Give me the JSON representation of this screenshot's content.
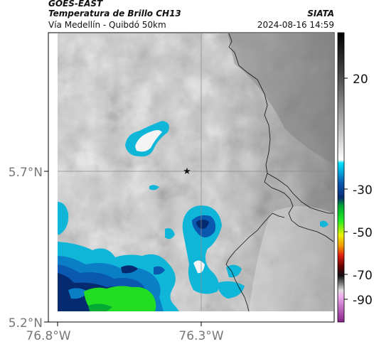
{
  "header": {
    "satellite": "GOES-EAST",
    "product": "Temperatura de Brillo CH13",
    "region": "Vía Medellín - Quibdó 50km",
    "agency": "SIATA",
    "datetime": "2024-08-16 14:59"
  },
  "map": {
    "x_ticks": [
      "76.8°W",
      "76.3°W"
    ],
    "y_ticks": [
      "5.7°N",
      "5.2°N"
    ],
    "marker": "star-marker"
  },
  "colorbar": {
    "ticks": [
      "20",
      "-30",
      "-50",
      "-70",
      "-90"
    ],
    "colors": {
      "warm_gray": "#bdbdbd",
      "cyan": "#0fb6d8",
      "blue": "#0a58b0",
      "green": "#22dd22",
      "yellow": "#eef000",
      "red": "#e02010",
      "black": "#111111",
      "magenta": "#c040c0"
    }
  }
}
